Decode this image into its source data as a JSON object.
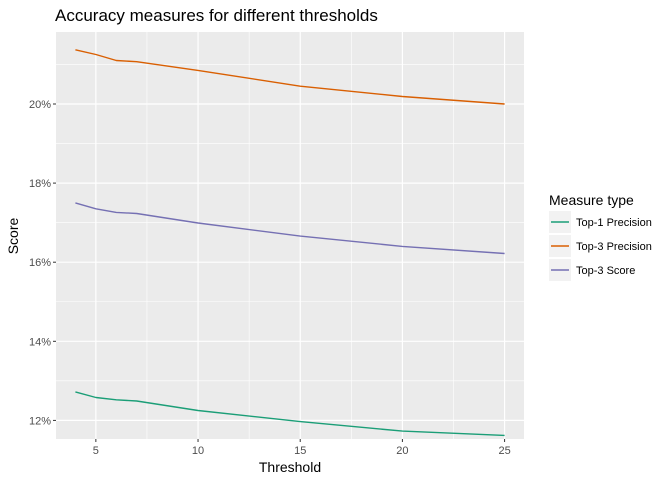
{
  "chart_data": {
    "type": "line",
    "title": "Accuracy measures for different thresholds",
    "xlabel": "Threshold",
    "ylabel": "Score",
    "x": [
      4,
      5,
      6,
      7,
      10,
      15,
      20,
      25
    ],
    "xticks": [
      5,
      10,
      15,
      20,
      25
    ],
    "xlim": [
      3.05,
      25.95
    ],
    "yticks": [
      12,
      14,
      16,
      18,
      20
    ],
    "ytick_labels": [
      "12%",
      "14%",
      "16%",
      "18%",
      "20%"
    ],
    "ylim": [
      11.53,
      21.82
    ],
    "grid": true,
    "legend": {
      "title": "Measure type",
      "position": "right"
    },
    "series": [
      {
        "name": "Top-1 Precision",
        "color": "#1b9e77",
        "values": [
          12.72,
          12.58,
          12.52,
          12.49,
          12.25,
          11.97,
          11.73,
          11.62
        ]
      },
      {
        "name": "Top-3 Precision",
        "color": "#d95f02",
        "values": [
          21.37,
          21.25,
          21.1,
          21.07,
          20.85,
          20.45,
          20.19,
          20.0
        ]
      },
      {
        "name": "Top-3 Score",
        "color": "#7570b3",
        "values": [
          17.5,
          17.35,
          17.26,
          17.23,
          16.99,
          16.66,
          16.4,
          16.22
        ]
      }
    ]
  }
}
